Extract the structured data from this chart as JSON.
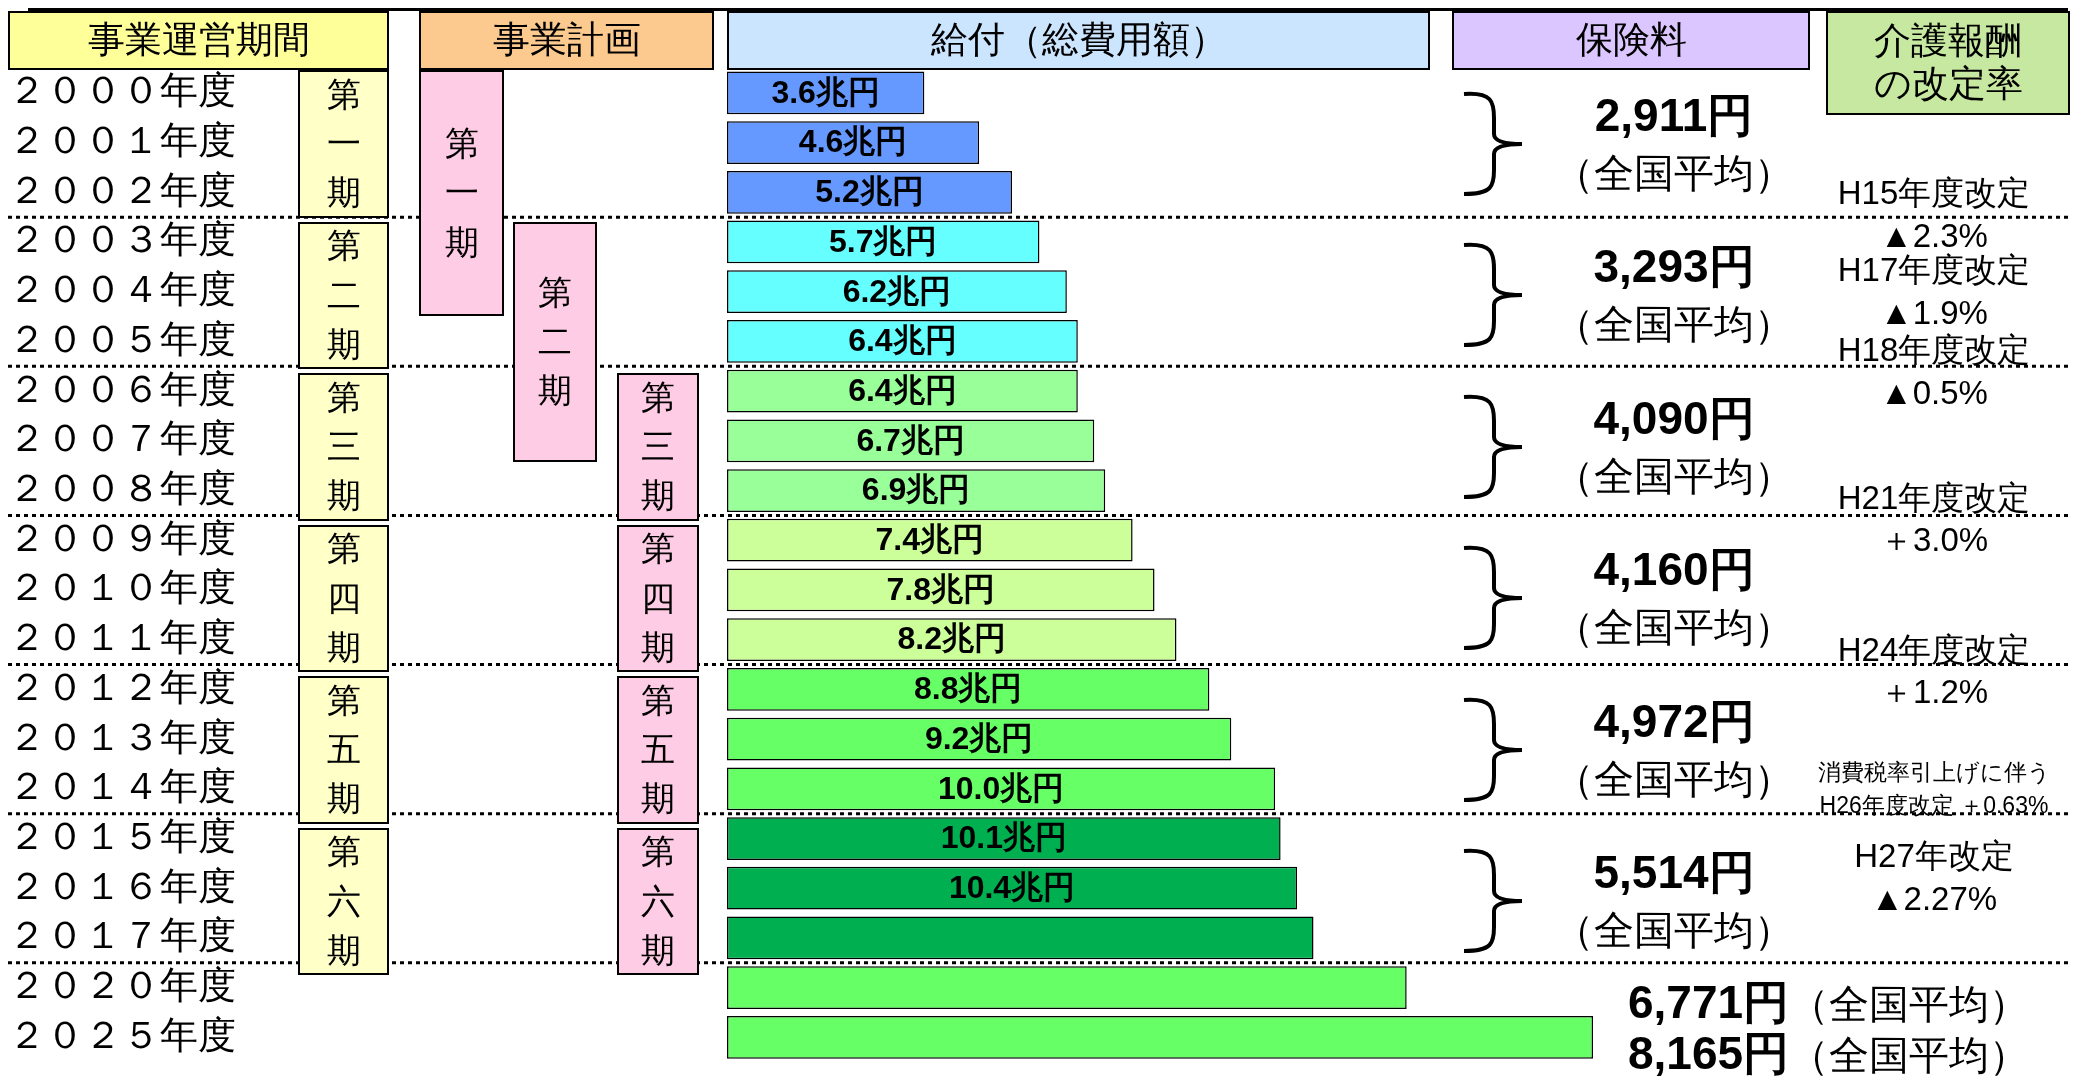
{
  "chart_data": {
    "type": "bar",
    "orientation": "horizontal",
    "categories": [
      "２０００年度",
      "２００１年度",
      "２００２年度",
      "２００３年度",
      "２００４年度",
      "２００５年度",
      "２００６年度",
      "２００７年度",
      "２００８年度",
      "２００９年度",
      "２０１０年度",
      "２０１１年度",
      "２０１２年度",
      "２０１３年度",
      "２０１４年度",
      "２０１５年度",
      "２０１６年度",
      "２０１７年度",
      "２０２０年度",
      "２０２５年度"
    ],
    "values": [
      3.6,
      4.6,
      5.2,
      5.7,
      6.2,
      6.4,
      6.4,
      6.7,
      6.9,
      7.4,
      7.8,
      8.2,
      8.8,
      9.2,
      10.0,
      10.1,
      10.4,
      10.7,
      12.4,
      15.8
    ],
    "colors": [
      "#6699ff",
      "#6699ff",
      "#6699ff",
      "#66ffff",
      "#66ffff",
      "#66ffff",
      "#99ff99",
      "#99ff99",
      "#99ff99",
      "#ccff99",
      "#ccff99",
      "#ccff99",
      "#66ff66",
      "#66ff66",
      "#66ff66",
      "#00b050",
      "#00b050",
      "#00b050",
      "#66ff66",
      "#66ff66"
    ],
    "value_labels": [
      "3.6兆円",
      "4.6兆円",
      "5.2兆円",
      "5.7兆円",
      "6.2兆円",
      "6.4兆円",
      "6.4兆円",
      "6.7兆円",
      "6.9兆円",
      "7.4兆円",
      "7.8兆円",
      "8.2兆円",
      "8.8兆円",
      "9.2兆円",
      "10.0兆円",
      "10.1兆円",
      "10.4兆円",
      null,
      null,
      null
    ],
    "tick_labels": "y",
    "grid": "y",
    "annotations": [
      "事業運営期間",
      "事業計画",
      "給付（総費用額）",
      "保険料",
      "介護報酬の改定率",
      "第一期",
      "第二期",
      "第三期",
      "第四期",
      "第五期",
      "第六期",
      "第一期",
      "第二期",
      "第三期",
      "第四期",
      "第五期",
      "第六期",
      "2,911円（全国平均）",
      "3,293円（全国平均）",
      "4,090円（全国平均）",
      "4,160円（全国平均）",
      "4,972円（全国平均）",
      "5,514円（全国平均）",
      "6,771円（全国平均）",
      "8,165円（全国平均）",
      "H15年度改定",
      "▲2.3%",
      "H17年度改定",
      "▲1.9%",
      "H18年度改定",
      "▲0.5%",
      "H21年度改定",
      "＋3.0%",
      "H24年度改定",
      "＋1.2%",
      "消費税率引上げに伴う",
      "H26年度改定 ＋0.63%",
      "H27年改定",
      "▲2.27%"
    ]
  }
}
